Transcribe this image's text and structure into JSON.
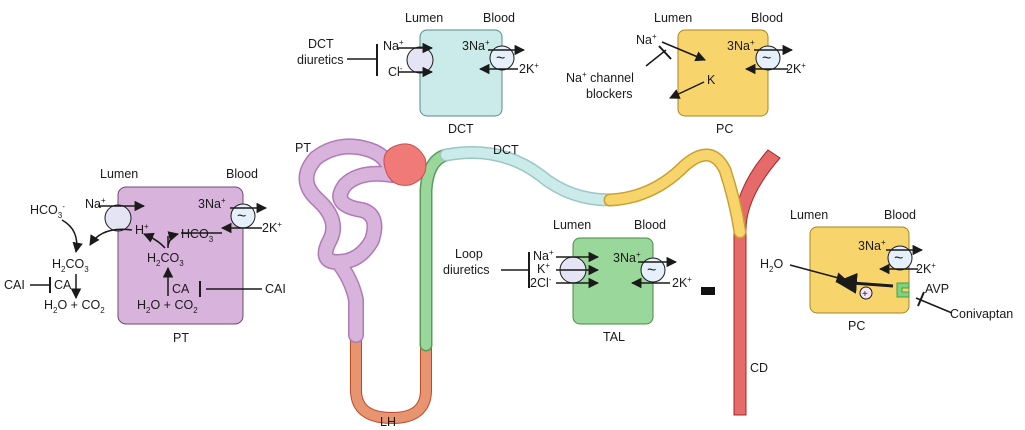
{
  "colors": {
    "pt": "#d8b3dc",
    "pt_border": "#6d4a73",
    "dct": "#cbeaea",
    "pc": "#f8d56c",
    "tal": "#9ad79a",
    "cd": "#e66a6a",
    "loop": "#e89470",
    "glomerulus": "#f07a78",
    "channel": "#e4e4f4",
    "pump": "#e6f0fa",
    "avp_receptor": "#7ed17e"
  },
  "icons": {
    "pump": "tilde-pump-icon",
    "channel": "circle-channel-icon",
    "receptor": "avp-receptor-icon",
    "block": "inhibition-bar-icon"
  },
  "common": {
    "lumen": "Lumen",
    "blood": "Blood",
    "pump_glyph": "~",
    "na": "Na",
    "sup_plus": "+",
    "na3": "3Na",
    "k2": "2K",
    "sup_minus": "-"
  },
  "dct_cell": {
    "drug_line1": "DCT",
    "drug_line2": "diuretics",
    "cl": "Cl",
    "caption": "DCT"
  },
  "pc_top": {
    "k": "K",
    "blocker_line1_after": " channel",
    "blocker_line2": "blockers",
    "caption": "PC"
  },
  "pt_cell": {
    "hco3_left": "HCO",
    "sub3": "3",
    "h": "H",
    "hco3_cell": "HCO",
    "h2co3_h": "H",
    "h2co3_rest": "CO",
    "sub2": "2",
    "ca": "CA",
    "cai": "CAI",
    "h2o_co2_a": "H",
    "h2o_co2_b": "O + CO",
    "caption": "PT"
  },
  "tal_cell": {
    "drug_line1": "Loop",
    "drug_line2": "diuretics",
    "k": "K",
    "cl2": "2Cl",
    "caption": "TAL"
  },
  "pc_right": {
    "h2o": "H",
    "h2o_tail": "O",
    "avp": "AVP",
    "conivaptan": "Conivaptan",
    "caption": "PC",
    "plus": "+"
  },
  "nephron": {
    "pt": "PT",
    "dct": "DCT",
    "lh": "LH",
    "cd": "CD"
  }
}
